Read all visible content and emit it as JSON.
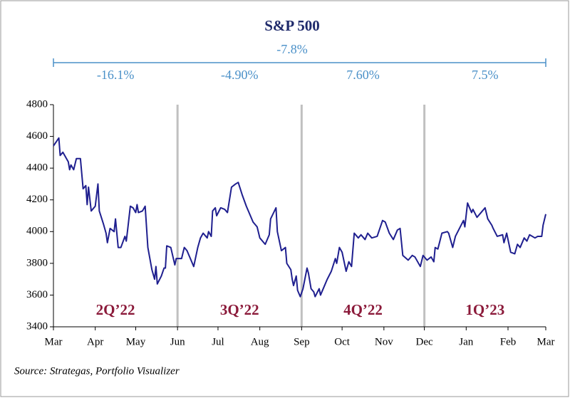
{
  "chart_data": {
    "type": "line",
    "title": "S&P 500",
    "annotations": {
      "period_return": "-7.8%",
      "quarter_returns": [
        "-16.1%",
        "-4.90%",
        "7.60%",
        "7.5%"
      ],
      "quarter_labels": [
        "2Q’22",
        "3Q’22",
        "4Q’22",
        "1Q’23"
      ],
      "source": "Source: Strategas, Portfolio Visualizer"
    },
    "quarter_dividers": [
      92,
      184,
      275
    ],
    "xlim": [
      0,
      365
    ],
    "xticks": [
      {
        "value": 0,
        "label": "Mar"
      },
      {
        "value": 31,
        "label": "Apr"
      },
      {
        "value": 61,
        "label": "May"
      },
      {
        "value": 92,
        "label": "Jun"
      },
      {
        "value": 122,
        "label": "Jul"
      },
      {
        "value": 153,
        "label": "Aug"
      },
      {
        "value": 184,
        "label": "Sep"
      },
      {
        "value": 214,
        "label": "Oct"
      },
      {
        "value": 245,
        "label": "Nov"
      },
      {
        "value": 275,
        "label": "Dec"
      },
      {
        "value": 306,
        "label": "Jan"
      },
      {
        "value": 337,
        "label": "Feb"
      },
      {
        "value": 365,
        "label": "Mar"
      }
    ],
    "ylim": [
      3400,
      4800
    ],
    "yticks": [
      3400,
      3600,
      3800,
      4000,
      4200,
      4400,
      4600,
      4800
    ],
    "color": "#1f1f8f",
    "x": [
      0,
      4,
      5,
      7,
      11,
      12,
      13,
      15,
      17,
      20,
      22,
      24,
      25,
      26,
      28,
      31,
      33,
      34,
      37,
      39,
      40,
      42,
      45,
      46,
      48,
      50,
      53,
      54,
      55,
      57,
      59,
      61,
      62,
      63,
      66,
      68,
      70,
      73,
      75,
      76,
      77,
      80,
      82,
      83,
      84,
      87,
      90,
      91,
      95,
      97,
      99,
      102,
      104,
      107,
      109,
      111,
      114,
      115,
      117,
      118,
      120,
      121,
      124,
      127,
      129,
      132,
      135,
      137,
      140,
      143,
      145,
      148,
      151,
      153,
      157,
      160,
      161,
      165,
      166,
      169,
      172,
      173,
      176,
      177,
      178,
      180,
      181,
      183,
      185,
      188,
      189,
      191,
      193,
      194,
      197,
      198,
      201,
      203,
      206,
      209,
      210,
      212,
      214,
      217,
      219,
      221,
      223,
      226,
      228,
      231,
      233,
      236,
      240,
      244,
      246,
      249,
      252,
      255,
      257,
      259,
      263,
      266,
      268,
      272,
      274,
      277,
      280,
      282,
      283,
      285,
      288,
      292,
      293,
      296,
      298,
      301,
      304,
      305,
      307,
      310,
      311,
      314,
      317,
      320,
      322,
      325,
      326,
      329,
      333,
      334,
      336,
      339,
      342,
      344,
      346,
      349,
      351,
      353,
      357,
      359,
      362,
      363,
      365
    ],
    "values": [
      4540,
      4590,
      4480,
      4500,
      4440,
      4390,
      4420,
      4390,
      4460,
      4460,
      4270,
      4290,
      4170,
      4280,
      4130,
      4160,
      4300,
      4130,
      4050,
      3990,
      3930,
      4020,
      4000,
      4080,
      3900,
      3900,
      3970,
      3940,
      4010,
      4160,
      4150,
      4120,
      4170,
      4120,
      4130,
      4160,
      3900,
      3760,
      3700,
      3780,
      3670,
      3720,
      3770,
      3770,
      3910,
      3900,
      3790,
      3830,
      3830,
      3900,
      3880,
      3820,
      3780,
      3900,
      3960,
      3990,
      3960,
      4000,
      3970,
      4130,
      4150,
      4100,
      4150,
      4140,
      4120,
      4280,
      4300,
      4310,
      4230,
      4160,
      4120,
      4060,
      4030,
      3960,
      3920,
      3980,
      4080,
      4150,
      4000,
      3880,
      3900,
      3800,
      3760,
      3700,
      3660,
      3720,
      3630,
      3590,
      3640,
      3770,
      3740,
      3640,
      3620,
      3590,
      3640,
      3600,
      3660,
      3700,
      3750,
      3830,
      3800,
      3900,
      3870,
      3750,
      3810,
      3780,
      3990,
      3960,
      3980,
      3950,
      3990,
      3960,
      3970,
      4070,
      4060,
      3990,
      3950,
      4010,
      4020,
      3850,
      3820,
      3850,
      3840,
      3780,
      3850,
      3820,
      3840,
      3810,
      3900,
      3890,
      3990,
      4000,
      3990,
      3900,
      3970,
      4020,
      4070,
      4030,
      4180,
      4120,
      4140,
      4090,
      4120,
      4150,
      4080,
      4040,
      4020,
      3970,
      3980,
      3930,
      3990,
      3870,
      3860,
      3920,
      3900,
      3960,
      3940,
      3980,
      3960,
      3970,
      3970,
      4040,
      4110
    ]
  }
}
